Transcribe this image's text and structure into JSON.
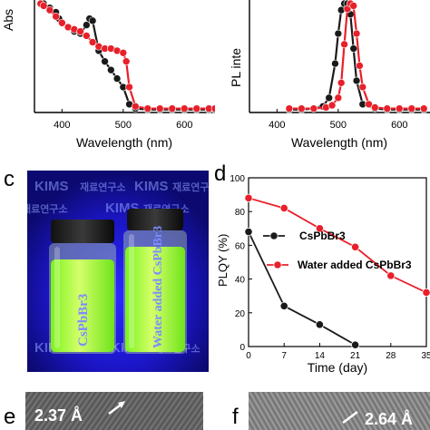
{
  "panel_labels": {
    "c": "c",
    "d": "d",
    "e": "e",
    "f": "f"
  },
  "colors": {
    "black_series": "#1a1a1a",
    "red_series": "#e8202a",
    "photo_bg": "#1c16c8",
    "solution": "#9bff2a"
  },
  "panel_a": {
    "ylabel": "Abs",
    "xlabel": "Wavelength (nm)",
    "xticks": [
      "400",
      "500",
      "600"
    ]
  },
  "panel_b": {
    "ylabel": "PL inte",
    "xlabel": "Wavelength (nm)",
    "xticks": [
      "400",
      "500",
      "600"
    ]
  },
  "panel_c": {
    "vial_left_label": "CsPbBr3",
    "vial_right_label": "Water added CsPbBr3",
    "kims_text": "KIMS",
    "korean_text": "재료연구소"
  },
  "panel_e": {
    "spacing": "2.37 Å"
  },
  "panel_f": {
    "spacing": "2.64 Å"
  },
  "chart_data": [
    {
      "type": "line",
      "panel": "a",
      "xlabel": "Wavelength (nm)",
      "ylabel": "Abs",
      "xlim": [
        355,
        650
      ],
      "ylim": [
        0,
        1
      ],
      "xticks": [
        400,
        500,
        600
      ],
      "series": [
        {
          "x": [
            365,
            370,
            380,
            390,
            395,
            400,
            410,
            420,
            430,
            440,
            445,
            450,
            460,
            470,
            480,
            490,
            500,
            510,
            520,
            540,
            560,
            580,
            600,
            620,
            640,
            650
          ],
          "y": [
            1.0,
            1.0,
            0.96,
            0.92,
            0.86,
            0.82,
            0.78,
            0.74,
            0.72,
            0.8,
            0.86,
            0.84,
            0.56,
            0.46,
            0.38,
            0.3,
            0.22,
            0.06,
            0.02,
            0.01,
            0.01,
            0.01,
            0.01,
            0.01,
            0.01,
            0.01
          ]
        },
        {
          "x": [
            365,
            370,
            380,
            390,
            400,
            410,
            420,
            430,
            440,
            450,
            460,
            470,
            480,
            490,
            500,
            505,
            510,
            520,
            540,
            560,
            580,
            600,
            620,
            640,
            650
          ],
          "y": [
            1.0,
            0.98,
            0.94,
            0.88,
            0.82,
            0.78,
            0.76,
            0.74,
            0.7,
            0.64,
            0.6,
            0.58,
            0.58,
            0.56,
            0.54,
            0.46,
            0.22,
            0.04,
            0.02,
            0.02,
            0.02,
            0.02,
            0.02,
            0.02,
            0.02
          ]
        }
      ]
    },
    {
      "type": "line",
      "panel": "b",
      "xlabel": "Wavelength (nm)",
      "ylabel": "PL inte",
      "xlim": [
        355,
        650
      ],
      "ylim": [
        0,
        1
      ],
      "xticks": [
        400,
        500,
        600
      ],
      "series": [
        {
          "x": [
            420,
            440,
            460,
            475,
            485,
            495,
            500,
            505,
            510,
            515,
            520,
            525,
            530,
            540,
            560,
            580,
            600,
            620,
            640
          ],
          "y": [
            0.01,
            0.01,
            0.02,
            0.04,
            0.12,
            0.44,
            0.72,
            0.94,
            1.0,
            1.0,
            0.9,
            0.58,
            0.28,
            0.06,
            0.02,
            0.01,
            0.01,
            0.01,
            0.01
          ]
        },
        {
          "x": [
            420,
            440,
            460,
            480,
            490,
            500,
            505,
            510,
            515,
            520,
            525,
            530,
            535,
            540,
            550,
            560,
            580,
            600,
            620,
            640
          ],
          "y": [
            0.02,
            0.02,
            0.02,
            0.03,
            0.05,
            0.12,
            0.26,
            0.62,
            0.95,
            1.0,
            0.98,
            0.72,
            0.42,
            0.22,
            0.06,
            0.03,
            0.02,
            0.02,
            0.02,
            0.02
          ]
        }
      ]
    },
    {
      "type": "line",
      "panel": "d",
      "xlabel": "Time (day)",
      "ylabel": "PLQY (%)",
      "xlim": [
        0,
        35
      ],
      "ylim": [
        0,
        100
      ],
      "xticks": [
        0,
        7,
        14,
        21,
        28,
        35
      ],
      "yticks": [
        0,
        20,
        40,
        60,
        80,
        100
      ],
      "series": [
        {
          "name": "CsPbBr3",
          "x": [
            0,
            7,
            14,
            21
          ],
          "y": [
            68,
            24,
            13,
            1
          ]
        },
        {
          "name": "Water added CsPbBr3",
          "x": [
            0,
            7,
            14,
            21,
            28,
            35
          ],
          "y": [
            88,
            82,
            70,
            59,
            42,
            32
          ]
        }
      ]
    }
  ]
}
